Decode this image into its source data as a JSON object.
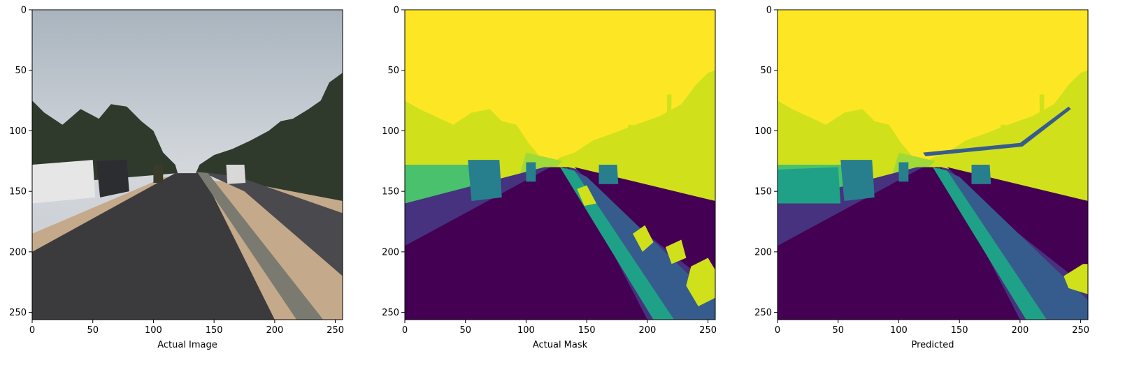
{
  "chart_data": [
    {
      "type": "image",
      "title": "",
      "xlabel": "Actual Image",
      "ylabel": "",
      "xlim": [
        0,
        256
      ],
      "ylim": [
        256,
        0
      ],
      "x_ticks": [
        0,
        50,
        100,
        150,
        200,
        250
      ],
      "y_ticks": [
        0,
        50,
        100,
        150,
        200,
        250
      ],
      "content": "road photo",
      "colors": {
        "sky": "#cfd3d8",
        "road": "#3b3b3d",
        "trees": "#2f3a2c",
        "ground": "#c4a98a"
      }
    },
    {
      "type": "heatmap",
      "title": "",
      "xlabel": "Actual Mask",
      "ylabel": "",
      "xlim": [
        0,
        256
      ],
      "ylim": [
        256,
        0
      ],
      "x_ticks": [
        0,
        50,
        100,
        150,
        200,
        250
      ],
      "y_ticks": [
        0,
        50,
        100,
        150,
        200,
        250
      ],
      "colormap": "viridis",
      "colors": {
        "c0": "#440154",
        "c1": "#46327e",
        "c2": "#365c8d",
        "c3": "#277f8e",
        "c4": "#1fa187",
        "c5": "#4ac16d",
        "c6": "#a0da39",
        "c7": "#d0e11c",
        "c8": "#fde725"
      }
    },
    {
      "type": "heatmap",
      "title": "",
      "xlabel": "Predicted",
      "ylabel": "",
      "xlim": [
        0,
        256
      ],
      "ylim": [
        256,
        0
      ],
      "x_ticks": [
        0,
        50,
        100,
        150,
        200,
        250
      ],
      "y_ticks": [
        0,
        50,
        100,
        150,
        200,
        250
      ],
      "colormap": "viridis",
      "colors": {
        "c0": "#440154",
        "c1": "#46327e",
        "c2": "#365c8d",
        "c3": "#277f8e",
        "c4": "#1fa187",
        "c5": "#4ac16d",
        "c6": "#a0da39",
        "c7": "#d0e11c",
        "c8": "#fde725"
      }
    }
  ]
}
